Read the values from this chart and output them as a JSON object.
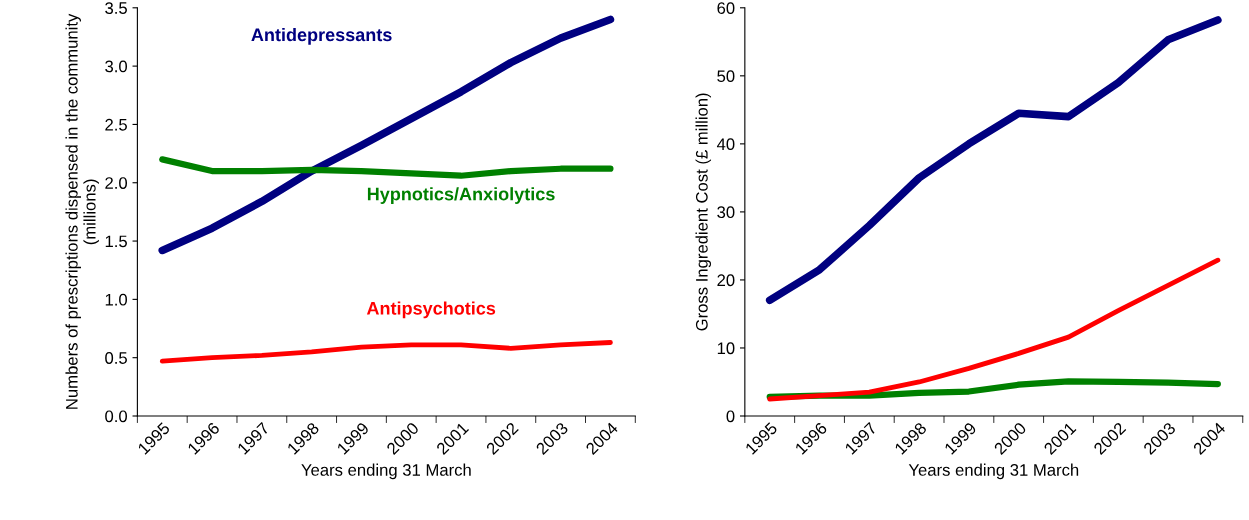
{
  "chart_data": [
    {
      "type": "line",
      "xlabel": "Years ending 31 March",
      "ylabel": "Numbers of prescriptions dispensed in the community (millions)",
      "categories": [
        "1995",
        "1996",
        "1997",
        "1998",
        "1999",
        "2000",
        "2001",
        "2002",
        "2003",
        "2004"
      ],
      "series": [
        {
          "name": "Antidepressants",
          "color": "#000080",
          "values": [
            1.42,
            1.61,
            1.84,
            2.1,
            2.32,
            2.55,
            2.78,
            3.03,
            3.24,
            3.4
          ]
        },
        {
          "name": "Hypnotics/Anxiolytics",
          "color": "#008000",
          "values": [
            2.2,
            2.1,
            2.1,
            2.11,
            2.1,
            2.08,
            2.06,
            2.1,
            2.12,
            2.12
          ]
        },
        {
          "name": "Antipsychotics",
          "color": "#ff0000",
          "values": [
            0.47,
            0.5,
            0.52,
            0.55,
            0.59,
            0.61,
            0.61,
            0.58,
            0.61,
            0.63
          ]
        }
      ],
      "ylim": [
        0,
        3.5
      ],
      "yticks": [
        {
          "value": 0,
          "label": "0.0"
        },
        0.5,
        {
          "value": 1,
          "label": "1.0"
        },
        1.5,
        {
          "value": 2,
          "label": "2.0"
        },
        2.5,
        {
          "value": 3,
          "label": "3.0"
        },
        3.5
      ],
      "grid": false,
      "legend": false,
      "marker": "none",
      "line_style": "solid"
    },
    {
      "type": "line",
      "xlabel": "Years ending 31 March",
      "ylabel": "Gross Ingredient Cost (£ million)",
      "categories": [
        "1995",
        "1996",
        "1997",
        "1998",
        "1999",
        "2000",
        "2001",
        "2002",
        "2003",
        "2004"
      ],
      "series": [
        {
          "color": "#000080",
          "values": [
            17,
            21.5,
            28,
            35,
            40,
            44.5,
            44,
            49,
            55.3,
            58.2
          ]
        },
        {
          "color": "#008000",
          "values": [
            2.8,
            3,
            3,
            3.4,
            3.6,
            4.6,
            5.1,
            5.0,
            4.9,
            4.7
          ]
        },
        {
          "color": "#ff0000",
          "values": [
            2.5,
            3,
            3.5,
            5,
            7,
            9.2,
            11.6,
            15.5,
            19.2,
            22.9
          ]
        }
      ],
      "ylim": [
        0,
        60
      ],
      "yticks": [
        0,
        10,
        20,
        30,
        40,
        50,
        60
      ],
      "grid": false,
      "legend": false,
      "marker": "none",
      "line_style": "solid"
    }
  ]
}
